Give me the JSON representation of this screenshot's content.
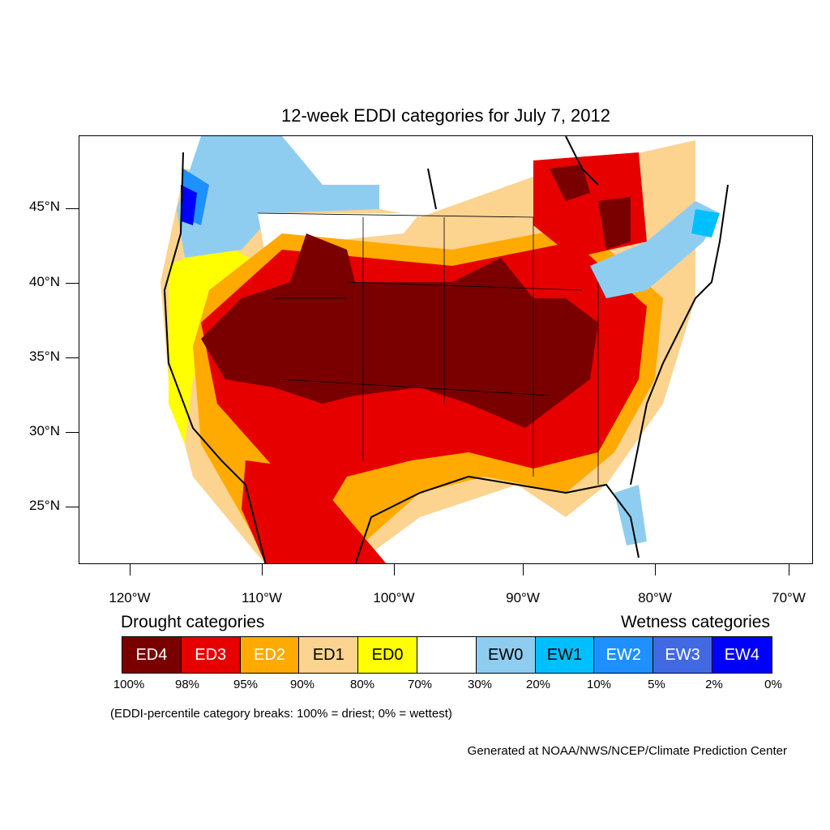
{
  "title": "12-week EDDI categories for July 7, 2012",
  "axes": {
    "lat_labels": [
      "45°N",
      "40°N",
      "35°N",
      "30°N",
      "25°N"
    ],
    "lon_labels": [
      "120°W",
      "110°W",
      "100°W",
      "90°W",
      "80°W",
      "70°W"
    ]
  },
  "legend": {
    "drought_heading": "Drought categories",
    "wetness_heading": "Wetness categories",
    "categories": [
      {
        "label": "ED4",
        "color": "#7a0000",
        "text_color": "#ffffff"
      },
      {
        "label": "ED3",
        "color": "#e60000",
        "text_color": "#ffffff"
      },
      {
        "label": "ED2",
        "color": "#ffaa00",
        "text_color": "#ffffff"
      },
      {
        "label": "ED1",
        "color": "#fcd38f",
        "text_color": "#000000"
      },
      {
        "label": "ED0",
        "color": "#ffff00",
        "text_color": "#000000"
      },
      {
        "label": "",
        "color": "#ffffff",
        "text_color": "#000000"
      },
      {
        "label": "EW0",
        "color": "#8fcdf0",
        "text_color": "#000000"
      },
      {
        "label": "EW1",
        "color": "#00bfff",
        "text_color": "#000000"
      },
      {
        "label": "EW2",
        "color": "#1e90ff",
        "text_color": "#ffffff"
      },
      {
        "label": "EW3",
        "color": "#4169e1",
        "text_color": "#ffffff"
      },
      {
        "label": "EW4",
        "color": "#0000ff",
        "text_color": "#ffffff"
      }
    ],
    "breaks": [
      "100%",
      "98%",
      "95%",
      "90%",
      "80%",
      "70%",
      "30%",
      "20%",
      "10%",
      "5%",
      "2%",
      "0%"
    ]
  },
  "note": "(EDDI-percentile category breaks: 100% = driest; 0% = wettest)",
  "credit": "Generated at NOAA/NWS/NCEP/Climate Prediction Center"
}
